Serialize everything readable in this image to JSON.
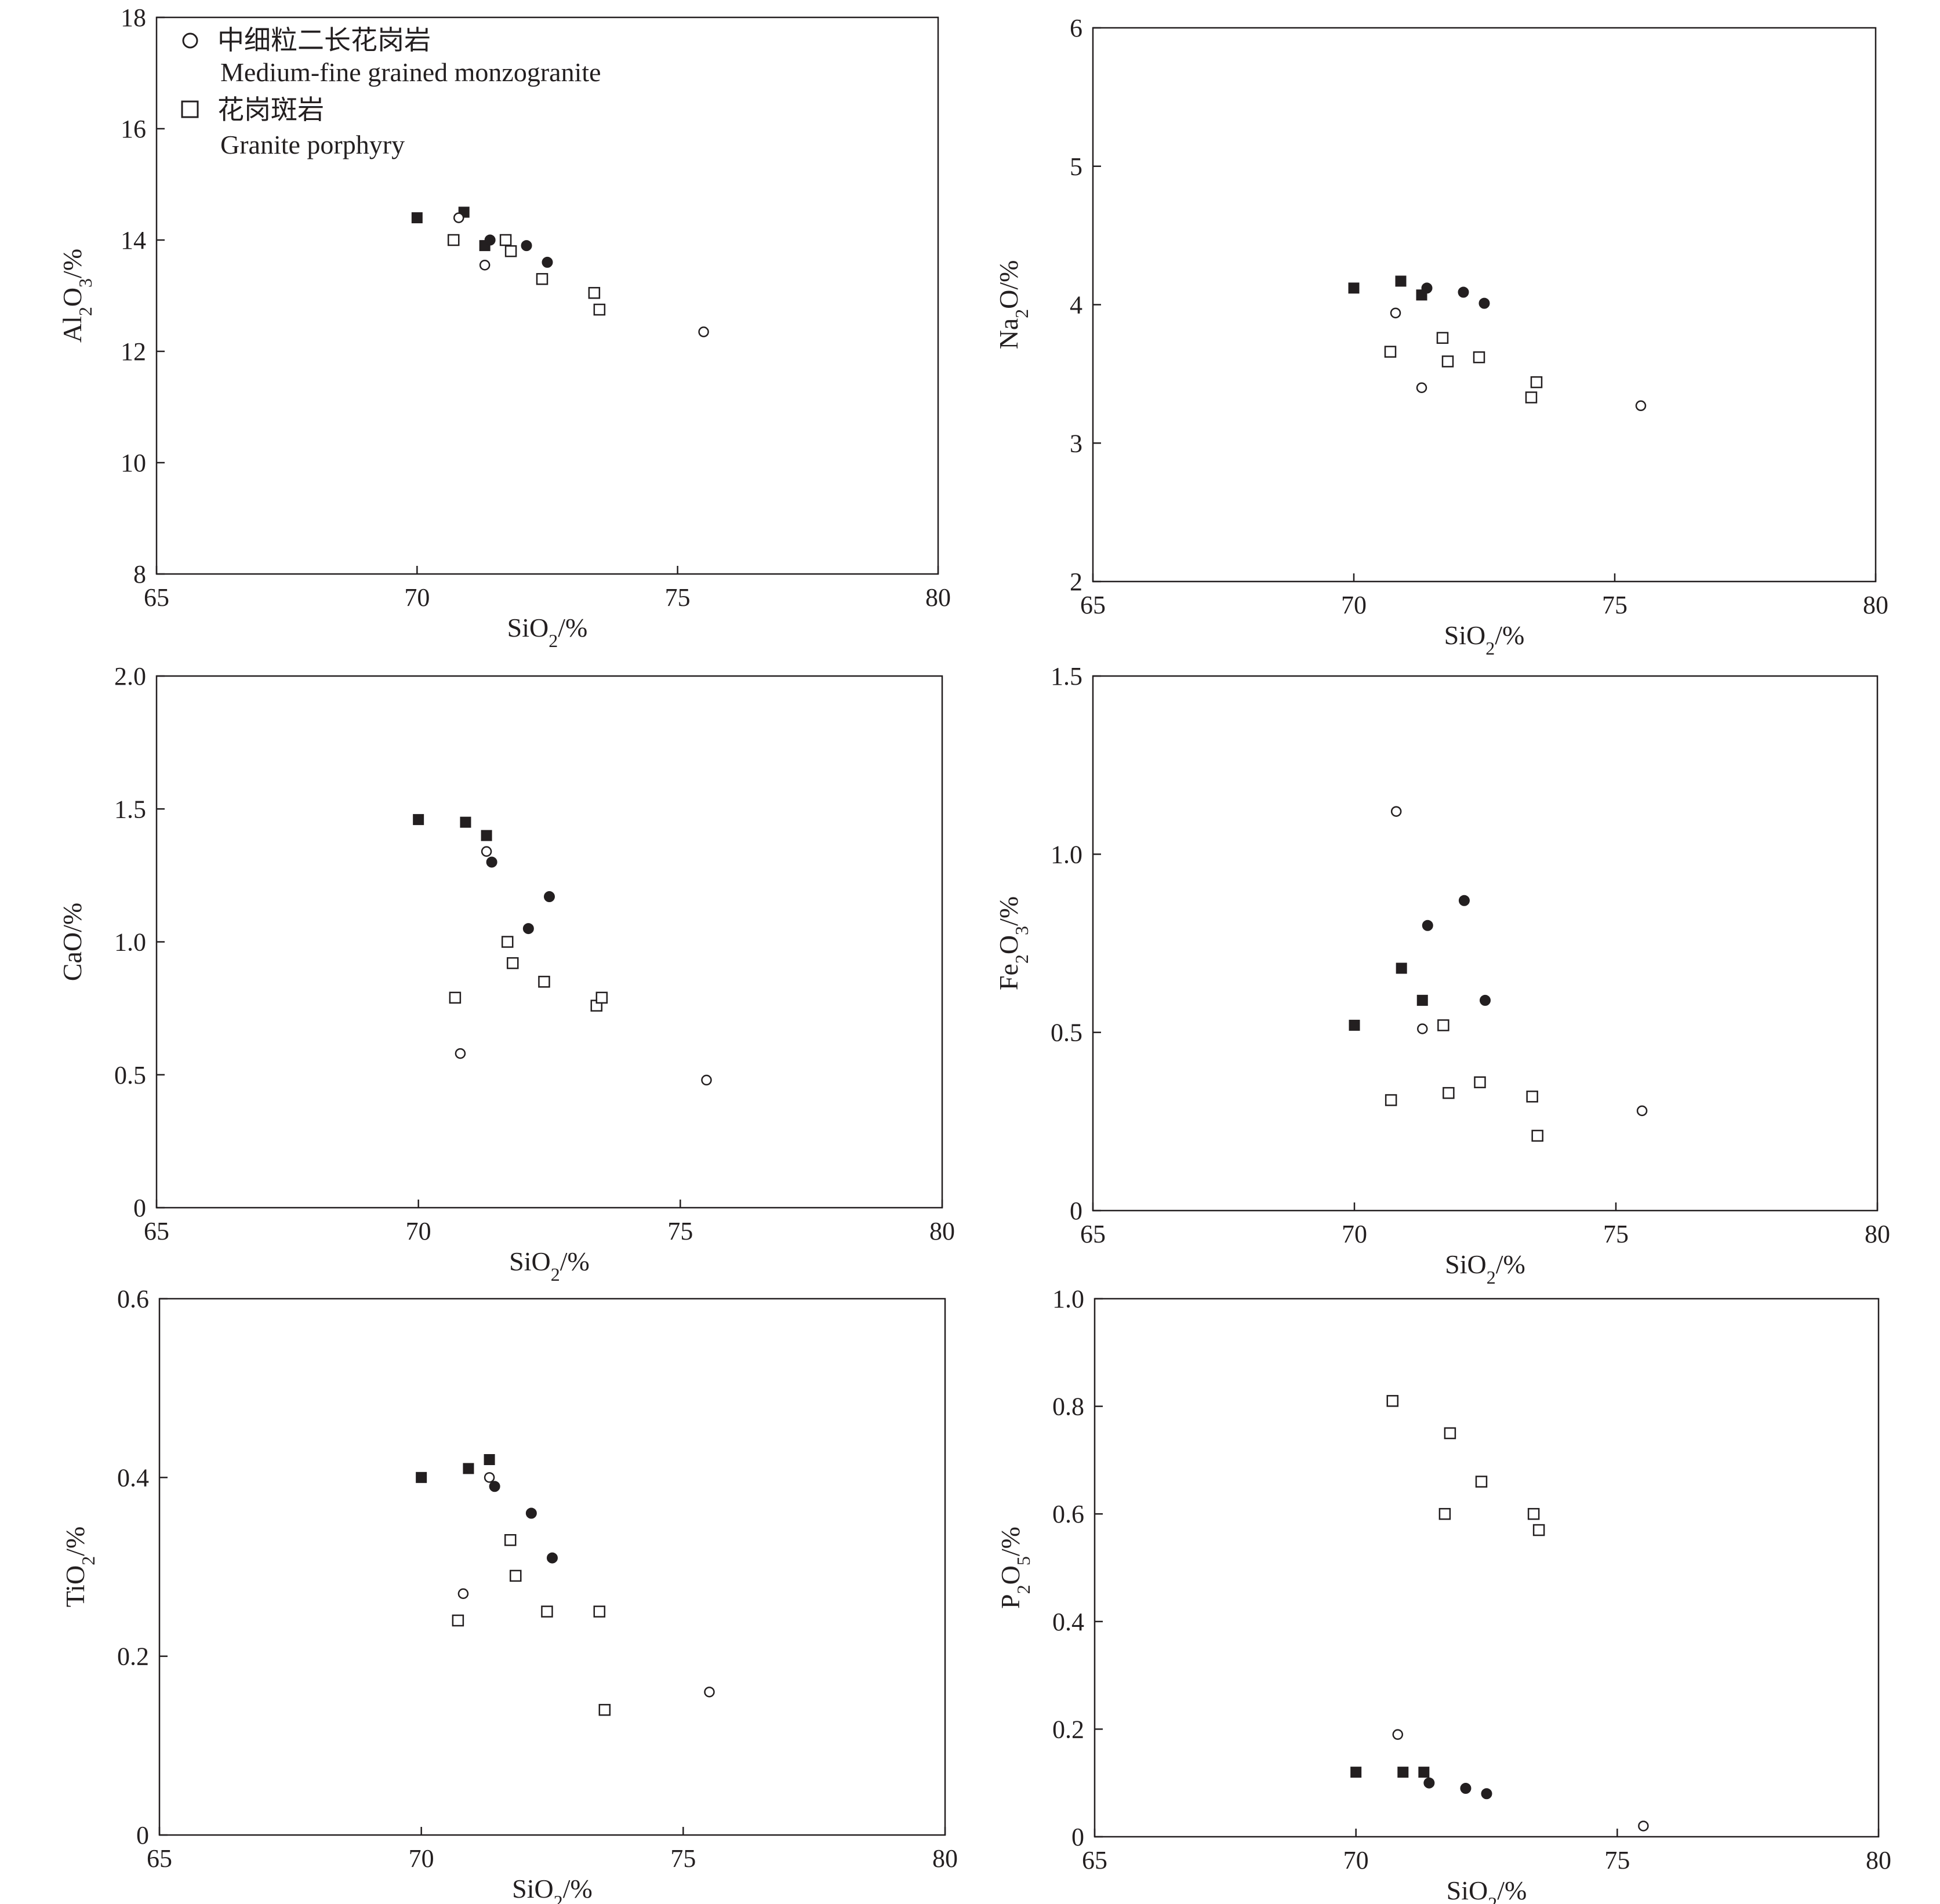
{
  "legend": {
    "items": [
      {
        "symbol": "circle",
        "label_zh": "中细粒二长花岗岩",
        "label_en": "Medium-fine grained monzogranite"
      },
      {
        "symbol": "square",
        "label_zh": "花岗斑岩",
        "label_en": "Granite porphyry"
      }
    ]
  },
  "chart_data": [
    {
      "type": "scatter",
      "xlabel": "SiO2/%",
      "ylabel": "Al2O3/%",
      "xlim": [
        65,
        80
      ],
      "ylim": [
        8,
        18
      ],
      "xticks": [
        "65",
        "70",
        "75",
        "80"
      ],
      "yticks": [
        "8",
        "10",
        "12",
        "14",
        "16",
        "18"
      ],
      "series": [
        {
          "marker": "square-filled",
          "points": [
            [
              70.0,
              14.4
            ],
            [
              70.9,
              14.5
            ],
            [
              71.3,
              13.9
            ]
          ]
        },
        {
          "marker": "circle-filled",
          "points": [
            [
              71.4,
              14.0
            ],
            [
              72.1,
              13.9
            ],
            [
              72.5,
              13.6
            ]
          ]
        },
        {
          "marker": "circle-open",
          "points": [
            [
              70.8,
              14.4
            ],
            [
              71.3,
              13.55
            ],
            [
              75.5,
              12.35
            ]
          ]
        },
        {
          "marker": "square-open",
          "points": [
            [
              70.7,
              14.0
            ],
            [
              71.7,
              14.0
            ],
            [
              71.8,
              13.8
            ],
            [
              72.4,
              13.3
            ],
            [
              73.4,
              13.05
            ],
            [
              73.5,
              12.75
            ]
          ]
        }
      ]
    },
    {
      "type": "scatter",
      "xlabel": "SiO2/%",
      "ylabel": "Na2O/%",
      "xlim": [
        65,
        80
      ],
      "ylim": [
        2,
        6
      ],
      "xticks": [
        "65",
        "70",
        "75",
        "80"
      ],
      "yticks": [
        "2",
        "3",
        "4",
        "5",
        "6"
      ],
      "series": [
        {
          "marker": "square-filled",
          "points": [
            [
              70.0,
              4.12
            ],
            [
              70.9,
              4.17
            ],
            [
              71.3,
              4.07
            ]
          ]
        },
        {
          "marker": "circle-filled",
          "points": [
            [
              71.4,
              4.12
            ],
            [
              72.1,
              4.09
            ],
            [
              72.5,
              4.01
            ]
          ]
        },
        {
          "marker": "circle-open",
          "points": [
            [
              70.8,
              3.94
            ],
            [
              71.3,
              3.4
            ],
            [
              75.5,
              3.27
            ]
          ]
        },
        {
          "marker": "square-open",
          "points": [
            [
              70.7,
              3.66
            ],
            [
              71.7,
              3.76
            ],
            [
              71.8,
              3.59
            ],
            [
              72.4,
              3.62
            ],
            [
              73.4,
              3.33
            ],
            [
              73.5,
              3.44
            ]
          ]
        }
      ]
    },
    {
      "type": "scatter",
      "xlabel": "SiO2/%",
      "ylabel": "CaO/%",
      "xlim": [
        65,
        80
      ],
      "ylim": [
        0,
        2.0
      ],
      "xticks": [
        "65",
        "70",
        "75",
        "80"
      ],
      "yticks": [
        "0",
        "0.5",
        "1.0",
        "1.5",
        "2.0"
      ],
      "series": [
        {
          "marker": "square-filled",
          "points": [
            [
              70.0,
              1.46
            ],
            [
              70.9,
              1.45
            ],
            [
              71.3,
              1.4
            ]
          ]
        },
        {
          "marker": "circle-filled",
          "points": [
            [
              71.4,
              1.3
            ],
            [
              72.1,
              1.05
            ],
            [
              72.5,
              1.17
            ]
          ]
        },
        {
          "marker": "circle-open",
          "points": [
            [
              70.8,
              0.58
            ],
            [
              71.3,
              1.34
            ],
            [
              75.5,
              0.48
            ]
          ]
        },
        {
          "marker": "square-open",
          "points": [
            [
              70.7,
              0.79
            ],
            [
              71.7,
              1.0
            ],
            [
              71.8,
              0.92
            ],
            [
              72.4,
              0.85
            ],
            [
              73.4,
              0.76
            ],
            [
              73.5,
              0.79
            ]
          ]
        }
      ]
    },
    {
      "type": "scatter",
      "xlabel": "SiO2/%",
      "ylabel": "Fe2O3/%",
      "xlim": [
        65,
        80
      ],
      "ylim": [
        0,
        1.5
      ],
      "xticks": [
        "65",
        "70",
        "75",
        "80"
      ],
      "yticks": [
        "0",
        "0.5",
        "1.0",
        "1.5"
      ],
      "series": [
        {
          "marker": "square-filled",
          "points": [
            [
              70.0,
              0.52
            ],
            [
              70.9,
              0.68
            ],
            [
              71.3,
              0.59
            ]
          ]
        },
        {
          "marker": "circle-filled",
          "points": [
            [
              71.4,
              0.8
            ],
            [
              72.1,
              0.87
            ],
            [
              72.5,
              0.59
            ]
          ]
        },
        {
          "marker": "circle-open",
          "points": [
            [
              70.8,
              1.12
            ],
            [
              71.3,
              0.51
            ],
            [
              75.5,
              0.28
            ]
          ]
        },
        {
          "marker": "square-open",
          "points": [
            [
              70.7,
              0.31
            ],
            [
              71.7,
              0.52
            ],
            [
              71.8,
              0.33
            ],
            [
              72.4,
              0.36
            ],
            [
              73.4,
              0.32
            ],
            [
              73.5,
              0.21
            ]
          ]
        }
      ]
    },
    {
      "type": "scatter",
      "xlabel": "SiO2/%",
      "ylabel": "TiO2/%",
      "xlim": [
        65,
        80
      ],
      "ylim": [
        0,
        0.6
      ],
      "xticks": [
        "65",
        "70",
        "75",
        "80"
      ],
      "yticks": [
        "0",
        "0.2",
        "0.4",
        "0.6"
      ],
      "series": [
        {
          "marker": "square-filled",
          "points": [
            [
              70.0,
              0.4
            ],
            [
              70.9,
              0.41
            ],
            [
              71.3,
              0.42
            ]
          ]
        },
        {
          "marker": "circle-filled",
          "points": [
            [
              71.4,
              0.39
            ],
            [
              72.1,
              0.36
            ],
            [
              72.5,
              0.31
            ]
          ]
        },
        {
          "marker": "circle-open",
          "points": [
            [
              70.8,
              0.27
            ],
            [
              71.3,
              0.4
            ],
            [
              75.5,
              0.16
            ]
          ]
        },
        {
          "marker": "square-open",
          "points": [
            [
              70.7,
              0.24
            ],
            [
              71.7,
              0.33
            ],
            [
              71.8,
              0.29
            ],
            [
              72.4,
              0.25
            ],
            [
              73.4,
              0.25
            ],
            [
              73.5,
              0.14
            ]
          ]
        }
      ]
    },
    {
      "type": "scatter",
      "xlabel": "SiO2/%",
      "ylabel": "P2O5/%",
      "xlim": [
        65,
        80
      ],
      "ylim": [
        0,
        1.0
      ],
      "xticks": [
        "65",
        "70",
        "75",
        "80"
      ],
      "yticks": [
        "0",
        "0.2",
        "0.4",
        "0.6",
        "0.8",
        "1.0"
      ],
      "series": [
        {
          "marker": "square-filled",
          "points": [
            [
              70.0,
              0.12
            ],
            [
              70.9,
              0.12
            ],
            [
              71.3,
              0.12
            ]
          ]
        },
        {
          "marker": "circle-filled",
          "points": [
            [
              71.4,
              0.1
            ],
            [
              72.1,
              0.09
            ],
            [
              72.5,
              0.08
            ]
          ]
        },
        {
          "marker": "circle-open",
          "points": [
            [
              70.8,
              0.19
            ],
            [
              75.5,
              0.02
            ]
          ]
        },
        {
          "marker": "square-open",
          "points": [
            [
              70.7,
              0.81
            ],
            [
              71.7,
              0.6
            ],
            [
              71.8,
              0.75
            ],
            [
              72.4,
              0.66
            ],
            [
              73.4,
              0.6
            ],
            [
              73.5,
              0.57
            ]
          ]
        }
      ]
    }
  ]
}
